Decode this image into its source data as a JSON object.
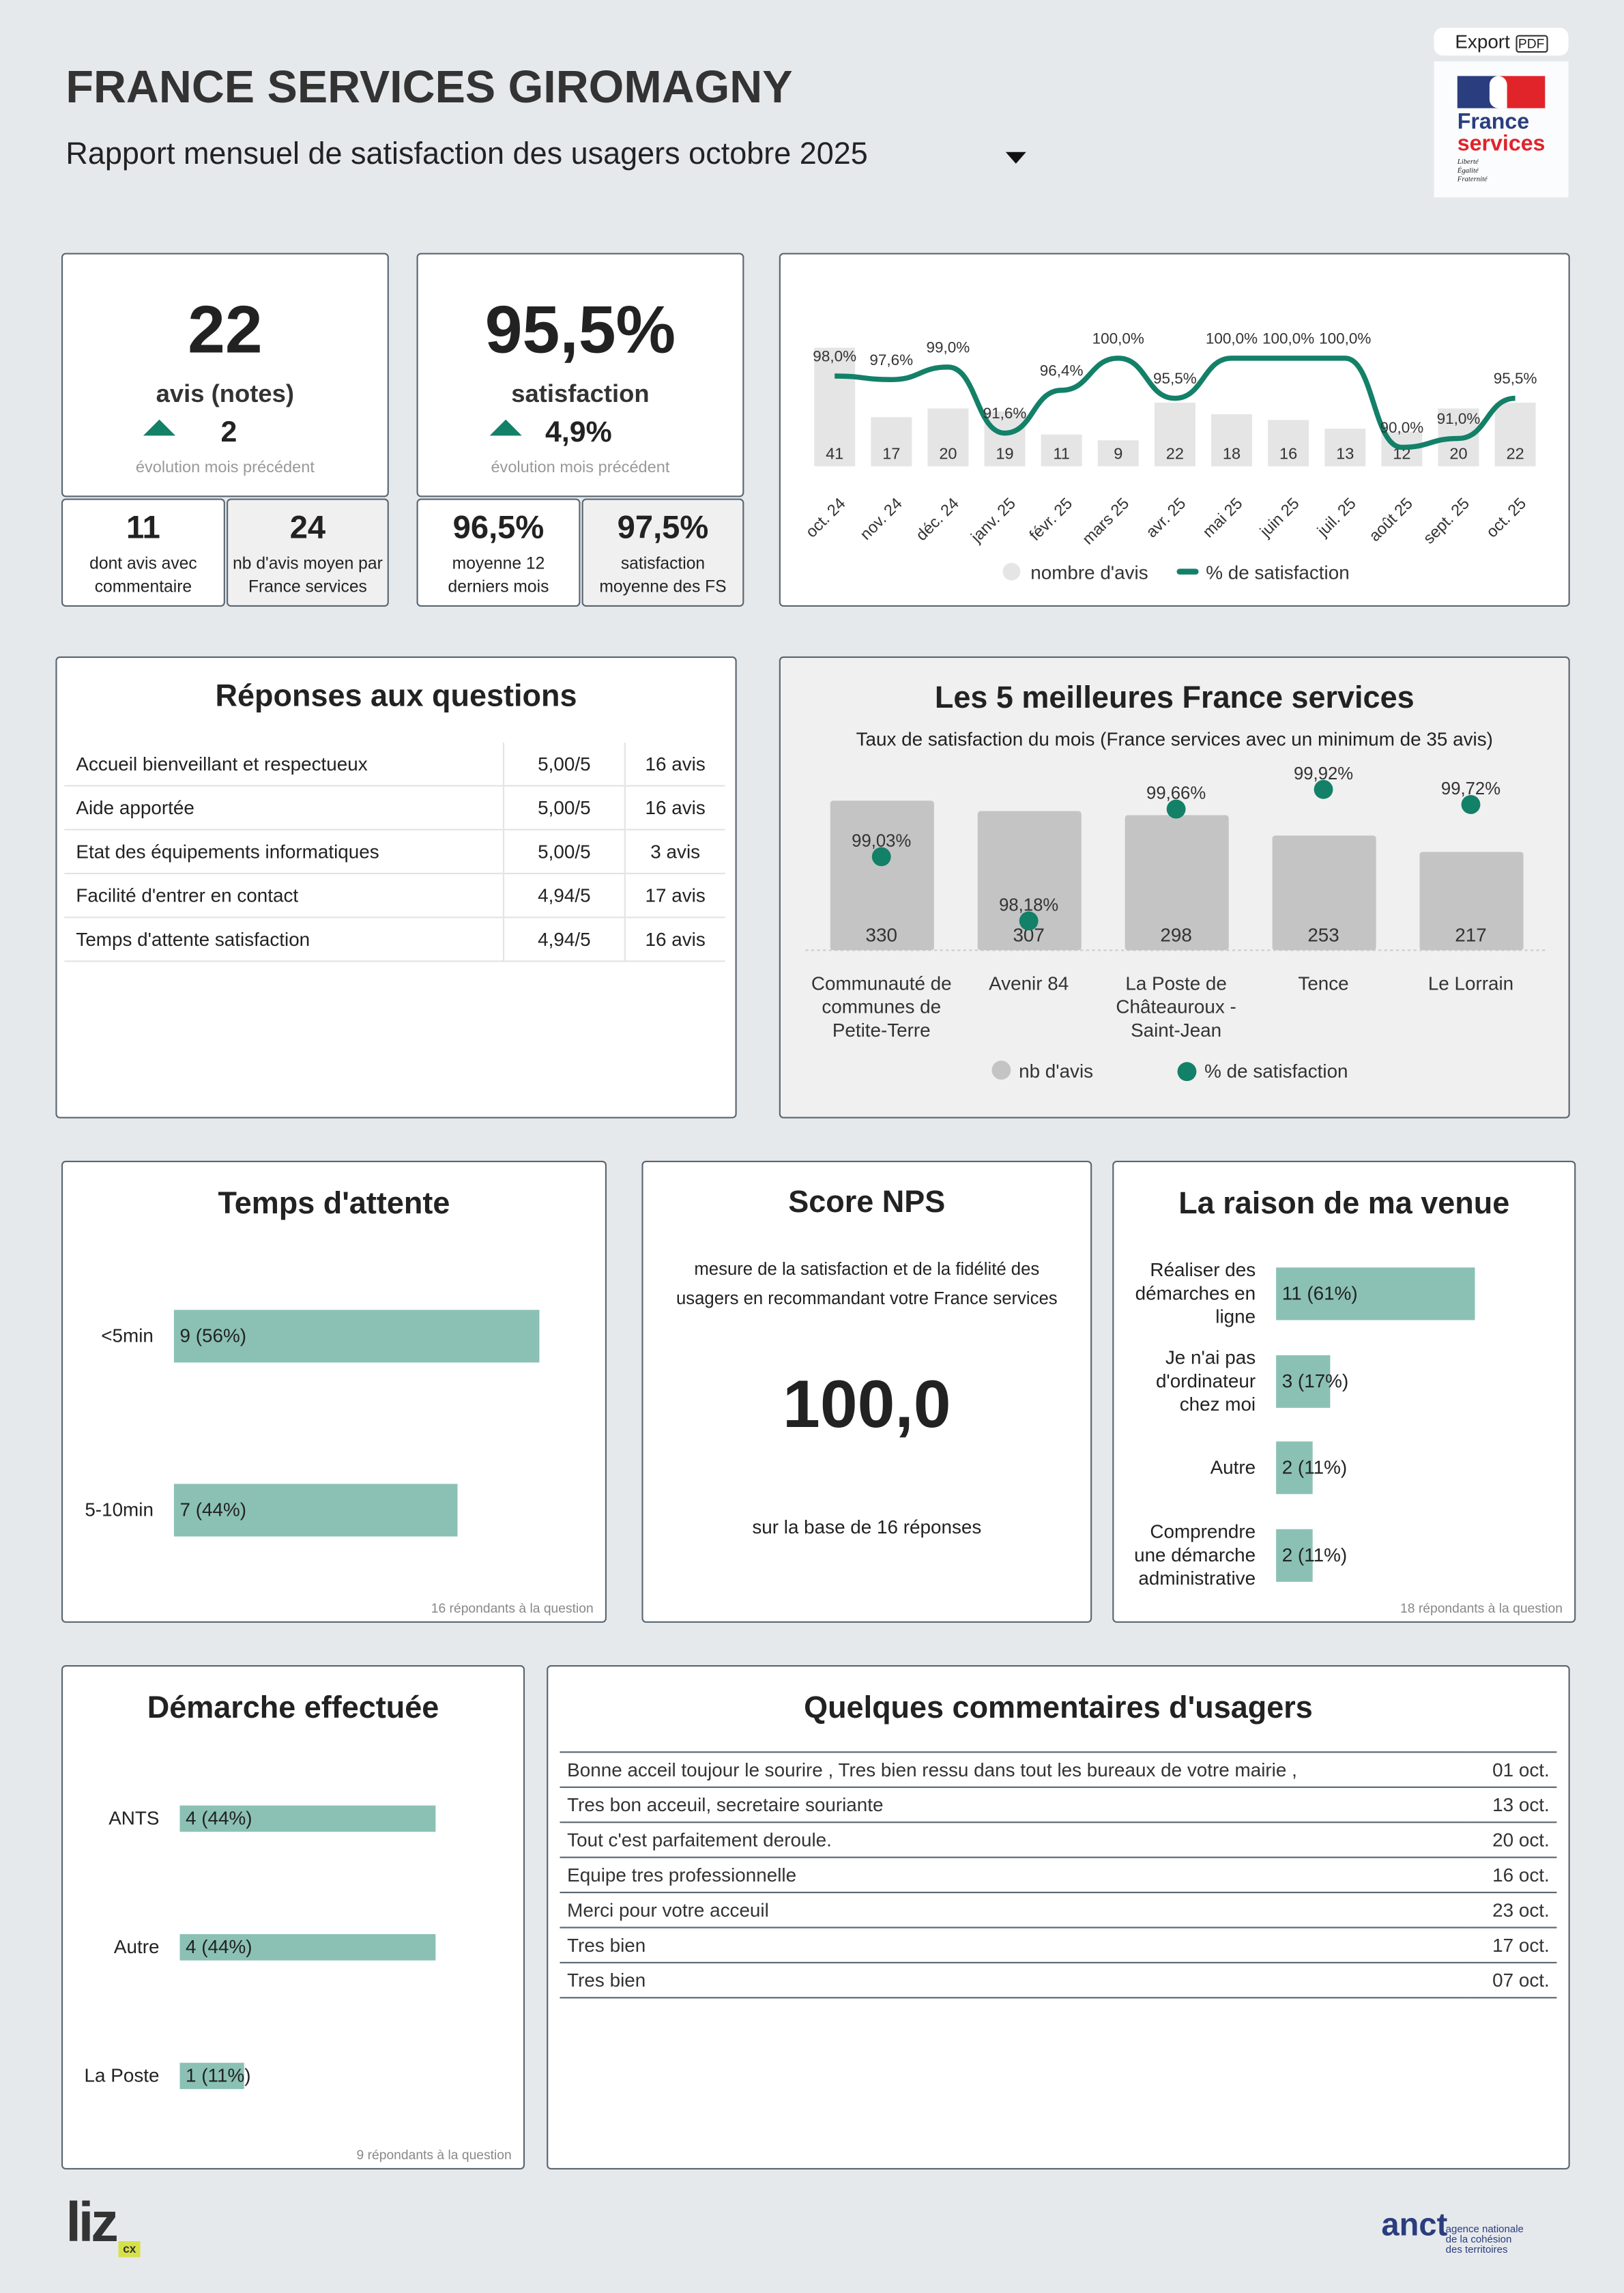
{
  "header": {
    "title": "FRANCE SERVICES GIROMAGNY",
    "subtitle": "Rapport mensuel de satisfaction des usagers",
    "period": "octobre 2025",
    "export_label": "Export",
    "logo_text": [
      "France",
      "services"
    ],
    "logo_motto": [
      "Liberté",
      "Égalité",
      "Fraternité"
    ]
  },
  "kpis": {
    "reviews": {
      "value": "22",
      "label": "avis (notes)",
      "delta": "2",
      "delta_label": "évolution mois précédent"
    },
    "satisfaction": {
      "value": "95,5%",
      "label": "satisfaction",
      "delta": "4,9%",
      "delta_label": "évolution mois précédent"
    },
    "with_comment": {
      "value": "11",
      "label": "dont avis avec commentaire"
    },
    "avg_fs": {
      "value": "24",
      "label": "nb d'avis moyen par France services"
    },
    "avg12": {
      "value": "96,5%",
      "label": "moyenne 12 derniers mois"
    },
    "avg_sat_fs": {
      "value": "97,5%",
      "label": "satisfaction moyenne des FS"
    }
  },
  "colors": {
    "accent": "#138068",
    "bar_grey": "#e5e5e5",
    "bar_green": "#8bc1b4"
  },
  "chart_data": [
    {
      "type": "bar+line",
      "categories": [
        "oct. 24",
        "nov. 24",
        "déc. 24",
        "janv. 25",
        "févr. 25",
        "mars 25",
        "avr. 25",
        "mai 25",
        "juin 25",
        "juil. 25",
        "août 25",
        "sept. 25",
        "oct. 25"
      ],
      "series": [
        {
          "name": "nombre d'avis",
          "type": "bar",
          "values": [
            41,
            17,
            20,
            19,
            11,
            9,
            22,
            18,
            16,
            13,
            12,
            20,
            22
          ]
        },
        {
          "name": "% de satisfaction",
          "type": "line",
          "values": [
            98.0,
            97.6,
            99.0,
            91.6,
            96.4,
            100.0,
            95.5,
            100.0,
            100.0,
            100.0,
            90.0,
            91.0,
            95.5
          ],
          "labels": [
            "98,0%",
            "97,6%",
            "99,0%",
            "91,6%",
            "96,4%",
            "100,0%",
            "95,5%",
            "100,0%",
            "100,0%",
            "100,0%",
            "90,0%",
            "91,0%",
            "95,5%"
          ]
        }
      ],
      "legend": [
        "nombre d'avis",
        "% de satisfaction"
      ],
      "legend_position": "bottom"
    },
    {
      "type": "bar+scatter",
      "title": "Les 5 meilleures France services",
      "subtitle": "Taux de satisfaction du mois (France services avec un minimum de 35 avis)",
      "categories": [
        "Communauté de communes de Petite-Terre",
        "Avenir 84",
        "La Poste de Châteauroux - Saint-Jean",
        "Tence",
        "Le Lorrain"
      ],
      "series": [
        {
          "name": "nb d'avis",
          "type": "bar",
          "values": [
            330,
            307,
            298,
            253,
            217
          ]
        },
        {
          "name": "% de satisfaction",
          "type": "scatter",
          "values": [
            99.03,
            98.18,
            99.66,
            99.92,
            99.72
          ],
          "labels": [
            "99,03%",
            "98,18%",
            "99,66%",
            "99,92%",
            "99,72%"
          ]
        }
      ],
      "legend": [
        "nb d'avis",
        "% de satisfaction"
      ],
      "legend_position": "bottom"
    }
  ],
  "questions": {
    "title": "Réponses aux questions",
    "rows": [
      {
        "q": "Accueil bienveillant et respectueux",
        "score": "5,00/5",
        "n": "16 avis"
      },
      {
        "q": "Aide apportée",
        "score": "5,00/5",
        "n": "16 avis"
      },
      {
        "q": "Etat des équipements informatiques",
        "score": "5,00/5",
        "n": "3 avis"
      },
      {
        "q": "Facilité d'entrer en contact",
        "score": "4,94/5",
        "n": "17 avis"
      },
      {
        "q": "Temps d'attente satisfaction",
        "score": "4,94/5",
        "n": "16 avis"
      }
    ]
  },
  "wait": {
    "title": "Temps d'attente",
    "rows": [
      {
        "label": "<5min",
        "count": 9,
        "text": "9 (56%)"
      },
      {
        "label": "5-10min",
        "count": 7,
        "text": "7 (44%)"
      }
    ],
    "note": "16 répondants à la question"
  },
  "nps": {
    "title": "Score NPS",
    "desc": "mesure de la satisfaction et de la fidélité des usagers en recommandant votre France services",
    "value": "100,0",
    "base": "sur la base de 16 réponses"
  },
  "reason": {
    "title": "La raison de ma venue",
    "rows": [
      {
        "label": "Réaliser des démarches en ligne",
        "count": 11,
        "text": "11 (61%)"
      },
      {
        "label": "Je n'ai pas d'ordinateur chez moi",
        "count": 3,
        "text": "3 (17%)"
      },
      {
        "label": "Autre",
        "count": 2,
        "text": "2 (11%)"
      },
      {
        "label": "Comprendre une démarche administrative",
        "count": 2,
        "text": "2 (11%)"
      }
    ],
    "note": "18 répondants à la question"
  },
  "demarche": {
    "title": "Démarche effectuée",
    "rows": [
      {
        "label": "ANTS",
        "count": 4,
        "text": "4 (44%)"
      },
      {
        "label": "Autre",
        "count": 4,
        "text": "4 (44%)"
      },
      {
        "label": "La Poste",
        "count": 1,
        "text": "1 (11%)"
      }
    ],
    "note": "9 répondants à la question"
  },
  "comments": {
    "title": "Quelques commentaires d'usagers",
    "rows": [
      {
        "text": "Bonne acceil toujour le sourire , Tres bien ressu dans tout les bureaux de votre mairie ,",
        "date": "01 oct."
      },
      {
        "text": "Tres bon acceuil, secretaire souriante",
        "date": "13 oct."
      },
      {
        "text": "Tout c'est parfaitement deroule.",
        "date": "20 oct."
      },
      {
        "text": "Equipe tres professionnelle",
        "date": "16 oct."
      },
      {
        "text": "Merci pour votre acceuil",
        "date": "23 oct."
      },
      {
        "text": "Tres bien",
        "date": "17 oct."
      },
      {
        "text": "Tres bien",
        "date": "07 oct."
      }
    ]
  },
  "footer": {
    "brand": "liz",
    "brand_badge": "cx",
    "partner_short": "anct",
    "partner_full": [
      "agence nationale",
      "de la cohésion",
      "des territoires"
    ]
  }
}
